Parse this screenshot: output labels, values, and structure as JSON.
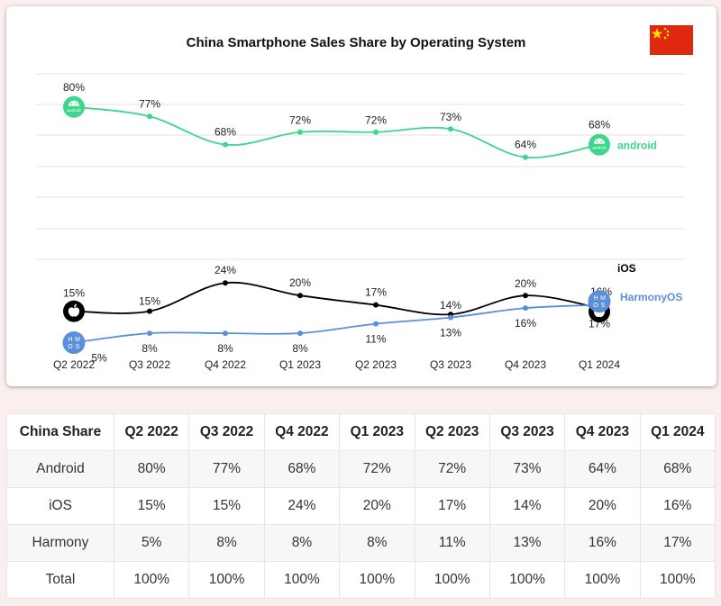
{
  "chart_data": {
    "type": "line",
    "title": "China Smartphone Sales Share by Operating System",
    "categories": [
      "Q2 2022",
      "Q3 2022",
      "Q4 2022",
      "Q1 2023",
      "Q2 2023",
      "Q3 2023",
      "Q4 2023",
      "Q1 2024"
    ],
    "series": [
      {
        "name": "android",
        "color": "#3dd68c",
        "icon": "android-logo",
        "values": [
          80,
          77,
          68,
          72,
          72,
          73,
          64,
          68
        ],
        "labels": [
          "80%",
          "77%",
          "68%",
          "72%",
          "72%",
          "73%",
          "64%",
          "68%"
        ]
      },
      {
        "name": "iOS",
        "color": "#000000",
        "icon": "apple-logo",
        "values": [
          15,
          15,
          24,
          20,
          17,
          14,
          20,
          16
        ],
        "labels": [
          "15%",
          "15%",
          "24%",
          "20%",
          "17%",
          "14%",
          "20%",
          "16%"
        ]
      },
      {
        "name": "HarmonyOS",
        "color": "#5b8fd9",
        "icon": "harmonyos-logo",
        "values": [
          5,
          8,
          8,
          8,
          11,
          13,
          16,
          17
        ],
        "labels": [
          "5%",
          "8%",
          "8%",
          "8%",
          "11%",
          "13%",
          "16%",
          "17%"
        ]
      }
    ],
    "logo_text": {
      "android": "android",
      "harmony": [
        "H",
        "M",
        "O",
        "S"
      ]
    },
    "ylim": [
      0,
      85
    ],
    "grid": true,
    "legend": "end-of-line labels"
  },
  "flag": "china-flag",
  "table": {
    "headers": [
      "China Share",
      "Q2 2022",
      "Q3 2022",
      "Q4 2022",
      "Q1 2023",
      "Q2 2023",
      "Q3 2023",
      "Q4 2023",
      "Q1 2024"
    ],
    "rows": [
      [
        "Android",
        "80%",
        "77%",
        "68%",
        "72%",
        "72%",
        "73%",
        "64%",
        "68%"
      ],
      [
        "iOS",
        "15%",
        "15%",
        "24%",
        "20%",
        "17%",
        "14%",
        "20%",
        "16%"
      ],
      [
        "Harmony",
        "5%",
        "8%",
        "8%",
        "8%",
        "11%",
        "13%",
        "16%",
        "17%"
      ],
      [
        "Total",
        "100%",
        "100%",
        "100%",
        "100%",
        "100%",
        "100%",
        "100%",
        "100%"
      ]
    ]
  }
}
